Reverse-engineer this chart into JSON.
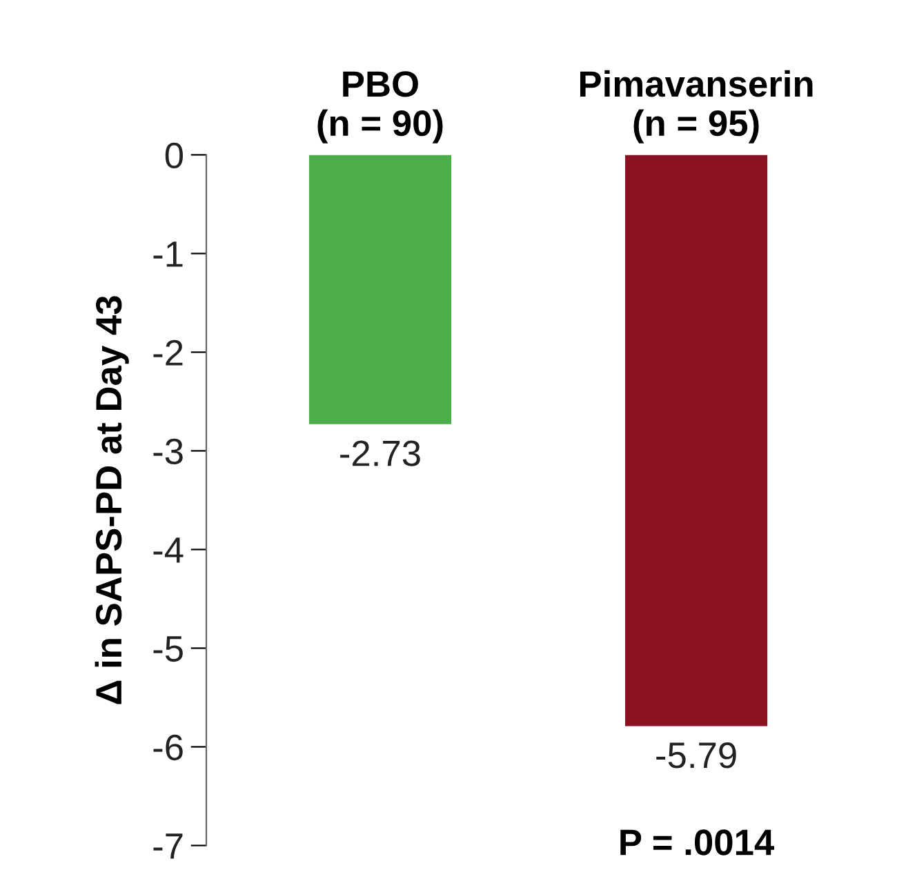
{
  "chart_data": {
    "type": "bar",
    "categories": [
      "PBO\n(n = 90)",
      "Pimavanserin\n(n = 95)"
    ],
    "values": [
      -2.73,
      -5.79
    ],
    "colors": [
      "#4bae4a",
      "#8a1222"
    ],
    "ylabel": "Δ in SAPS-PD at Day 43",
    "ylim": [
      -7,
      0
    ],
    "yticks": [
      0,
      -1,
      -2,
      -3,
      -4,
      -5,
      -6,
      -7
    ],
    "data_labels": true,
    "annotations": [
      "P = .0014"
    ],
    "grid": false,
    "legend": false
  }
}
